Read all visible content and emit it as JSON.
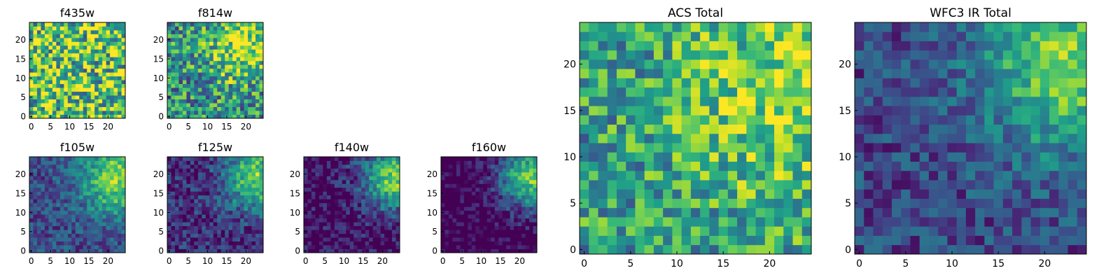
{
  "figure": {
    "colormap": "viridis",
    "colormap_stops": [
      "#440154",
      "#482878",
      "#3e4989",
      "#31688e",
      "#26828e",
      "#1f9e89",
      "#35b779",
      "#6ece58",
      "#b5de2b",
      "#fde725"
    ],
    "axes_frame_color": "#000000"
  },
  "chart_data": [
    {
      "type": "heatmap",
      "title": "f435w",
      "grid_size": [
        25,
        25
      ],
      "xlim": [
        0,
        24
      ],
      "ylim": [
        0,
        24
      ],
      "xticks": [
        0,
        5,
        10,
        15,
        20
      ],
      "yticks": [
        0,
        5,
        10,
        15,
        20
      ],
      "pattern": "mostly noise; mean level mid-high, no strong gradient",
      "value_range": [
        0,
        1
      ],
      "mean_level": 0.72,
      "noise_level": 0.45,
      "hotspot": null
    },
    {
      "type": "heatmap",
      "title": "f814w",
      "grid_size": [
        25,
        25
      ],
      "xlim": [
        0,
        24
      ],
      "ylim": [
        0,
        24
      ],
      "xticks": [
        0,
        5,
        10,
        15,
        20
      ],
      "yticks": [
        0,
        5,
        10,
        15,
        20
      ],
      "pattern": "noisy, brighter toward upper-right",
      "value_range": [
        0,
        1
      ],
      "mean_level": 0.58,
      "noise_level": 0.35,
      "hotspot": {
        "x": 19,
        "y": 18,
        "amplitude": 0.35,
        "sigma": 7
      }
    },
    {
      "type": "heatmap",
      "title": "f105w",
      "grid_size": [
        25,
        25
      ],
      "xlim": [
        0,
        24
      ],
      "ylim": [
        0,
        24
      ],
      "xticks": [
        0,
        5,
        10,
        15,
        20
      ],
      "yticks": [
        0,
        5,
        10,
        15,
        20
      ],
      "pattern": "smooth gradient, bright source upper-right corner",
      "value_range": [
        0,
        1
      ],
      "mean_level": 0.38,
      "noise_level": 0.18,
      "hotspot": {
        "x": 23,
        "y": 19,
        "amplitude": 0.6,
        "sigma": 7
      }
    },
    {
      "type": "heatmap",
      "title": "f125w",
      "grid_size": [
        25,
        25
      ],
      "xlim": [
        0,
        24
      ],
      "ylim": [
        0,
        24
      ],
      "xticks": [
        0,
        5,
        10,
        15,
        20
      ],
      "yticks": [
        0,
        5,
        10,
        15,
        20
      ],
      "pattern": "gradient, bright source upper-right corner",
      "value_range": [
        0,
        1
      ],
      "mean_level": 0.3,
      "noise_level": 0.2,
      "hotspot": {
        "x": 23,
        "y": 19,
        "amplitude": 0.65,
        "sigma": 6
      }
    },
    {
      "type": "heatmap",
      "title": "f140w",
      "grid_size": [
        25,
        25
      ],
      "xlim": [
        0,
        24
      ],
      "ylim": [
        0,
        24
      ],
      "xticks": [
        0,
        5,
        10,
        15,
        20
      ],
      "yticks": [
        0,
        5,
        10,
        15,
        20
      ],
      "pattern": "mostly dark, bright source upper-right corner",
      "value_range": [
        0,
        1
      ],
      "mean_level": 0.22,
      "noise_level": 0.2,
      "hotspot": {
        "x": 23,
        "y": 19,
        "amplitude": 0.75,
        "sigma": 6
      }
    },
    {
      "type": "heatmap",
      "title": "f160w",
      "grid_size": [
        25,
        25
      ],
      "xlim": [
        0,
        24
      ],
      "ylim": [
        0,
        24
      ],
      "xticks": [
        0,
        5,
        10,
        15,
        20
      ],
      "yticks": [
        0,
        5,
        10,
        15,
        20
      ],
      "pattern": "dark background, bright source upper-right corner",
      "value_range": [
        0,
        1
      ],
      "mean_level": 0.16,
      "noise_level": 0.18,
      "hotspot": {
        "x": 23,
        "y": 19,
        "amplitude": 0.8,
        "sigma": 6
      }
    },
    {
      "type": "heatmap",
      "title": "ACS Total",
      "grid_size": [
        25,
        25
      ],
      "xlim": [
        0,
        24
      ],
      "ylim": [
        0,
        24
      ],
      "xticks": [
        0,
        5,
        10,
        15,
        20
      ],
      "yticks": [
        0,
        5,
        10,
        15,
        20
      ],
      "pattern": "green/yellow field, brighter on right half",
      "value_range": [
        0,
        1
      ],
      "mean_level": 0.62,
      "noise_level": 0.3,
      "hotspot": {
        "x": 21,
        "y": 16,
        "amplitude": 0.3,
        "sigma": 8
      }
    },
    {
      "type": "heatmap",
      "title": "WFC3 IR Total",
      "grid_size": [
        25,
        25
      ],
      "xlim": [
        0,
        24
      ],
      "ylim": [
        0,
        24
      ],
      "xticks": [
        0,
        5,
        10,
        15,
        20
      ],
      "yticks": [
        0,
        5,
        10,
        15,
        20
      ],
      "pattern": "teal/blue field, bright source upper-right",
      "value_range": [
        0,
        1
      ],
      "mean_level": 0.36,
      "noise_level": 0.18,
      "hotspot": {
        "x": 23,
        "y": 20,
        "amplitude": 0.6,
        "sigma": 7
      }
    }
  ]
}
